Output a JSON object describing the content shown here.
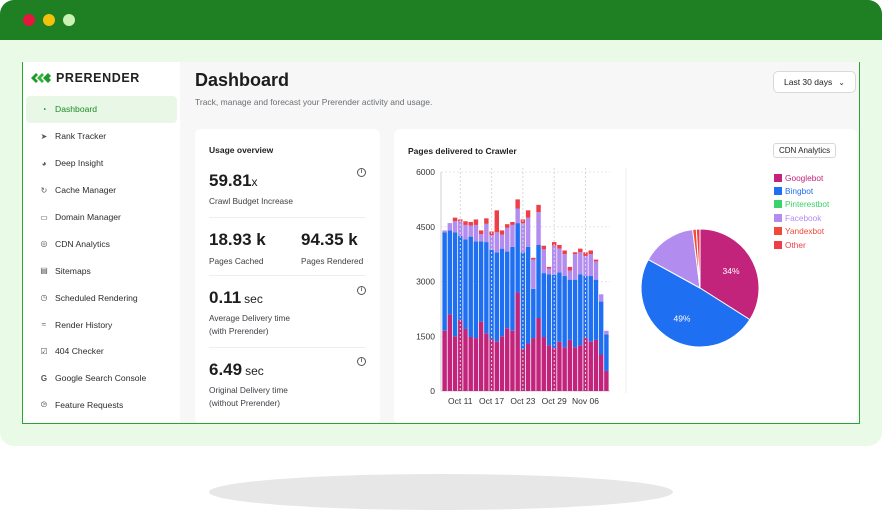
{
  "brand": {
    "name": "PRERENDER"
  },
  "sidebar": {
    "items": [
      {
        "label": "Dashboard",
        "icon": "gauge-icon",
        "active": true
      },
      {
        "label": "Rank Tracker",
        "icon": "tag-icon"
      },
      {
        "label": "Deep Insight",
        "icon": "pie-chart-icon"
      },
      {
        "label": "Cache Manager",
        "icon": "cache-icon"
      },
      {
        "label": "Domain Manager",
        "icon": "monitor-icon"
      },
      {
        "label": "CDN Analytics",
        "icon": "globe-icon"
      },
      {
        "label": "Sitemaps",
        "icon": "file-icon"
      },
      {
        "label": "Scheduled Rendering",
        "icon": "clock-icon"
      },
      {
        "label": "Render History",
        "icon": "trend-icon"
      },
      {
        "label": "404 Checker",
        "icon": "check-square-icon"
      },
      {
        "label": "Google Search Console",
        "icon": "google-icon"
      },
      {
        "label": "Feature Requests",
        "icon": "compass-icon"
      }
    ]
  },
  "header": {
    "title": "Dashboard",
    "subtitle": "Track, manage and forecast your Prerender activity and usage.",
    "range": "Last 30 days"
  },
  "usage": {
    "title": "Usage overview",
    "crawl_budget": {
      "value": "59.81",
      "unit": "x",
      "label": "Crawl Budget Increase"
    },
    "pages_cached": {
      "value": "18.93 k",
      "label": "Pages Cached"
    },
    "pages_rendered": {
      "value": "94.35 k",
      "label": "Pages Rendered"
    },
    "avg_delivery": {
      "value": "0.11",
      "unit": "sec",
      "label1": "Average Delivery time",
      "label2": "(with Prerender)"
    },
    "orig_delivery": {
      "value": "6.49",
      "unit": "sec",
      "label1": "Original Delivery time",
      "label2": "(without Prerender)"
    }
  },
  "chart_card": {
    "title": "Pages delivered to Crawler",
    "cdn_button": "CDN Analytics"
  },
  "colors": {
    "Googlebot": "#c2247c",
    "Bingbot": "#1f6ff2",
    "Pinterestbot": "#3ad26a",
    "Facebook": "#b38cf0",
    "Yandexbot": "#ef4a3a",
    "Other": "#ee3f48"
  },
  "chart_data": [
    {
      "type": "bar",
      "stacked": true,
      "title": "Pages delivered to Crawler",
      "x_tick_labels": [
        "Oct 11",
        "Oct 17",
        "Oct 23",
        "Oct 29",
        "Nov 06"
      ],
      "ylim": [
        0,
        6000
      ],
      "y_ticks": [
        0,
        1500,
        3000,
        4500,
        6000
      ],
      "series": [
        {
          "name": "Googlebot",
          "values": [
            1650,
            2100,
            1500,
            1950,
            1700,
            1480,
            1450,
            1900,
            1580,
            1420,
            1350,
            1500,
            1720,
            1650,
            2700,
            1150,
            1300,
            1450,
            2000,
            1480,
            1250,
            1180,
            1350,
            1200,
            1400,
            1200,
            1250,
            1450,
            1350,
            1400,
            1000,
            550
          ]
        },
        {
          "name": "Bingbot",
          "values": [
            2700,
            2300,
            2850,
            2300,
            2450,
            2750,
            2650,
            2200,
            2500,
            2450,
            2450,
            2400,
            2100,
            2300,
            1900,
            2650,
            2650,
            1350,
            2000,
            1750,
            1950,
            2000,
            1900,
            1950,
            1650,
            1850,
            1950,
            1700,
            1800,
            1650,
            1450,
            1000
          ]
        },
        {
          "name": "Pinterestbot",
          "values": [
            0,
            0,
            0,
            0,
            0,
            0,
            0,
            0,
            0,
            0,
            0,
            0,
            0,
            0,
            0,
            0,
            0,
            0,
            0,
            0,
            0,
            0,
            0,
            0,
            0,
            0,
            0,
            0,
            0,
            0,
            0,
            0
          ]
        },
        {
          "name": "Facebook",
          "values": [
            50,
            200,
            300,
            400,
            400,
            300,
            450,
            200,
            500,
            400,
            550,
            380,
            650,
            600,
            400,
            800,
            800,
            800,
            900,
            650,
            150,
            800,
            650,
            600,
            250,
            700,
            600,
            550,
            600,
            500,
            200,
            100
          ]
        },
        {
          "name": "Yandexbot",
          "values": [
            0,
            0,
            0,
            0,
            0,
            0,
            0,
            0,
            0,
            0,
            0,
            0,
            0,
            0,
            0,
            0,
            0,
            0,
            0,
            0,
            0,
            0,
            0,
            0,
            0,
            0,
            0,
            0,
            0,
            0,
            0,
            0
          ]
        },
        {
          "name": "Other",
          "values": [
            0,
            0,
            100,
            50,
            100,
            100,
            150,
            100,
            150,
            100,
            600,
            120,
            100,
            80,
            250,
            100,
            200,
            50,
            200,
            100,
            50,
            100,
            100,
            100,
            100,
            50,
            100,
            100,
            100,
            50,
            0,
            0
          ]
        }
      ]
    },
    {
      "type": "pie",
      "labels": [
        "Googlebot",
        "Bingbot",
        "Facebook",
        "Yandexbot",
        "Other"
      ],
      "values": [
        34,
        49,
        15,
        1,
        1
      ],
      "data_labels": [
        "34%",
        "49%",
        "",
        "",
        ""
      ]
    }
  ]
}
